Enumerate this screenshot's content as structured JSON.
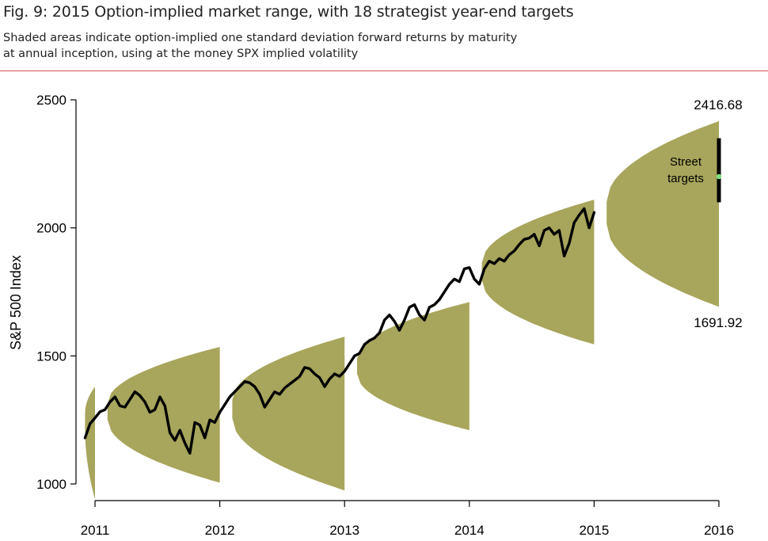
{
  "header": {
    "title": "Fig. 9: 2015 Option-implied market range, with 18 strategist year-end targets",
    "subtitle_line1": "Shaded areas indicate option-implied one standard deviation forward returns by maturity",
    "subtitle_line2": "at annual inception, using at the money SPX implied volatility"
  },
  "colors": {
    "band": "#a8a55c",
    "line": "#000000",
    "target_marker": "#7fe07f",
    "rule": "#d9534f"
  },
  "chart_data": {
    "type": "line",
    "title": "Fig. 9: 2015 Option-implied market range, with 18 strategist year-end targets",
    "ylabel": "S&P 500 Index",
    "xlabel": "",
    "xlim": [
      2010.9,
      2016.0
    ],
    "ylim": [
      1000,
      2500
    ],
    "x_ticks": [
      "2011",
      "2012",
      "2013",
      "2014",
      "2015",
      "2016"
    ],
    "y_ticks": [
      "1000",
      "1500",
      "2000",
      "2500"
    ],
    "grid": false,
    "series": [
      {
        "kind": "line",
        "points": [
          [
            2010.92,
            1180
          ],
          [
            2010.96,
            1235
          ],
          [
            2011.0,
            1258
          ],
          [
            2011.04,
            1282
          ],
          [
            2011.08,
            1290
          ],
          [
            2011.12,
            1320
          ],
          [
            2011.16,
            1340
          ],
          [
            2011.2,
            1305
          ],
          [
            2011.24,
            1300
          ],
          [
            2011.28,
            1330
          ],
          [
            2011.32,
            1360
          ],
          [
            2011.36,
            1345
          ],
          [
            2011.4,
            1320
          ],
          [
            2011.44,
            1280
          ],
          [
            2011.48,
            1290
          ],
          [
            2011.52,
            1340
          ],
          [
            2011.56,
            1305
          ],
          [
            2011.6,
            1200
          ],
          [
            2011.64,
            1170
          ],
          [
            2011.68,
            1210
          ],
          [
            2011.72,
            1160
          ],
          [
            2011.76,
            1120
          ],
          [
            2011.8,
            1240
          ],
          [
            2011.84,
            1230
          ],
          [
            2011.88,
            1180
          ],
          [
            2011.92,
            1250
          ],
          [
            2011.96,
            1240
          ],
          [
            2012.0,
            1280
          ],
          [
            2012.04,
            1310
          ],
          [
            2012.08,
            1340
          ],
          [
            2012.12,
            1360
          ],
          [
            2012.16,
            1380
          ],
          [
            2012.2,
            1400
          ],
          [
            2012.24,
            1395
          ],
          [
            2012.28,
            1380
          ],
          [
            2012.32,
            1350
          ],
          [
            2012.36,
            1300
          ],
          [
            2012.4,
            1330
          ],
          [
            2012.44,
            1360
          ],
          [
            2012.48,
            1350
          ],
          [
            2012.52,
            1375
          ],
          [
            2012.56,
            1390
          ],
          [
            2012.6,
            1405
          ],
          [
            2012.64,
            1420
          ],
          [
            2012.68,
            1455
          ],
          [
            2012.72,
            1450
          ],
          [
            2012.76,
            1430
          ],
          [
            2012.8,
            1415
          ],
          [
            2012.84,
            1380
          ],
          [
            2012.88,
            1410
          ],
          [
            2012.92,
            1430
          ],
          [
            2012.96,
            1420
          ],
          [
            2013.0,
            1440
          ],
          [
            2013.04,
            1470
          ],
          [
            2013.08,
            1500
          ],
          [
            2013.12,
            1510
          ],
          [
            2013.16,
            1545
          ],
          [
            2013.2,
            1560
          ],
          [
            2013.24,
            1570
          ],
          [
            2013.28,
            1590
          ],
          [
            2013.32,
            1640
          ],
          [
            2013.36,
            1660
          ],
          [
            2013.4,
            1635
          ],
          [
            2013.44,
            1600
          ],
          [
            2013.48,
            1640
          ],
          [
            2013.52,
            1690
          ],
          [
            2013.56,
            1700
          ],
          [
            2013.6,
            1660
          ],
          [
            2013.64,
            1640
          ],
          [
            2013.68,
            1690
          ],
          [
            2013.72,
            1700
          ],
          [
            2013.76,
            1720
          ],
          [
            2013.8,
            1750
          ],
          [
            2013.84,
            1780
          ],
          [
            2013.88,
            1800
          ],
          [
            2013.92,
            1790
          ],
          [
            2013.96,
            1840
          ],
          [
            2014.0,
            1845
          ],
          [
            2014.04,
            1800
          ],
          [
            2014.08,
            1780
          ],
          [
            2014.12,
            1840
          ],
          [
            2014.16,
            1870
          ],
          [
            2014.2,
            1860
          ],
          [
            2014.24,
            1880
          ],
          [
            2014.28,
            1870
          ],
          [
            2014.32,
            1895
          ],
          [
            2014.36,
            1910
          ],
          [
            2014.4,
            1935
          ],
          [
            2014.44,
            1955
          ],
          [
            2014.48,
            1960
          ],
          [
            2014.52,
            1975
          ],
          [
            2014.56,
            1930
          ],
          [
            2014.6,
            1990
          ],
          [
            2014.64,
            2000
          ],
          [
            2014.68,
            1975
          ],
          [
            2014.72,
            1990
          ],
          [
            2014.76,
            1890
          ],
          [
            2014.8,
            1940
          ],
          [
            2014.84,
            2020
          ],
          [
            2014.88,
            2050
          ],
          [
            2014.92,
            2075
          ],
          [
            2014.96,
            2000
          ],
          [
            2015.0,
            2060
          ]
        ]
      }
    ],
    "bands": [
      {
        "start": 2010.92,
        "end": 2011.0,
        "center": 1260,
        "upper_end": 1380,
        "lower_end": 940
      },
      {
        "start": 2011.1,
        "end": 2012.0,
        "center": 1285,
        "upper_end": 1535,
        "lower_end": 1005
      },
      {
        "start": 2012.1,
        "end": 2013.0,
        "center": 1295,
        "upper_end": 1575,
        "lower_end": 975
      },
      {
        "start": 2013.1,
        "end": 2014.0,
        "center": 1460,
        "upper_end": 1710,
        "lower_end": 1210
      },
      {
        "start": 2014.1,
        "end": 2015.0,
        "center": 1830,
        "upper_end": 2110,
        "lower_end": 1545
      },
      {
        "start": 2015.1,
        "end": 2016.0,
        "center": 2059,
        "upper_end": 2416.68,
        "lower_end": 1691.92
      }
    ],
    "street_targets": {
      "x": 2016.0,
      "min": 2100,
      "max": 2350,
      "median": 2200
    },
    "annotations": {
      "upper_value": "2416.68",
      "lower_value": "1691.92",
      "street_line1": "Street",
      "street_line2": "targets"
    }
  }
}
